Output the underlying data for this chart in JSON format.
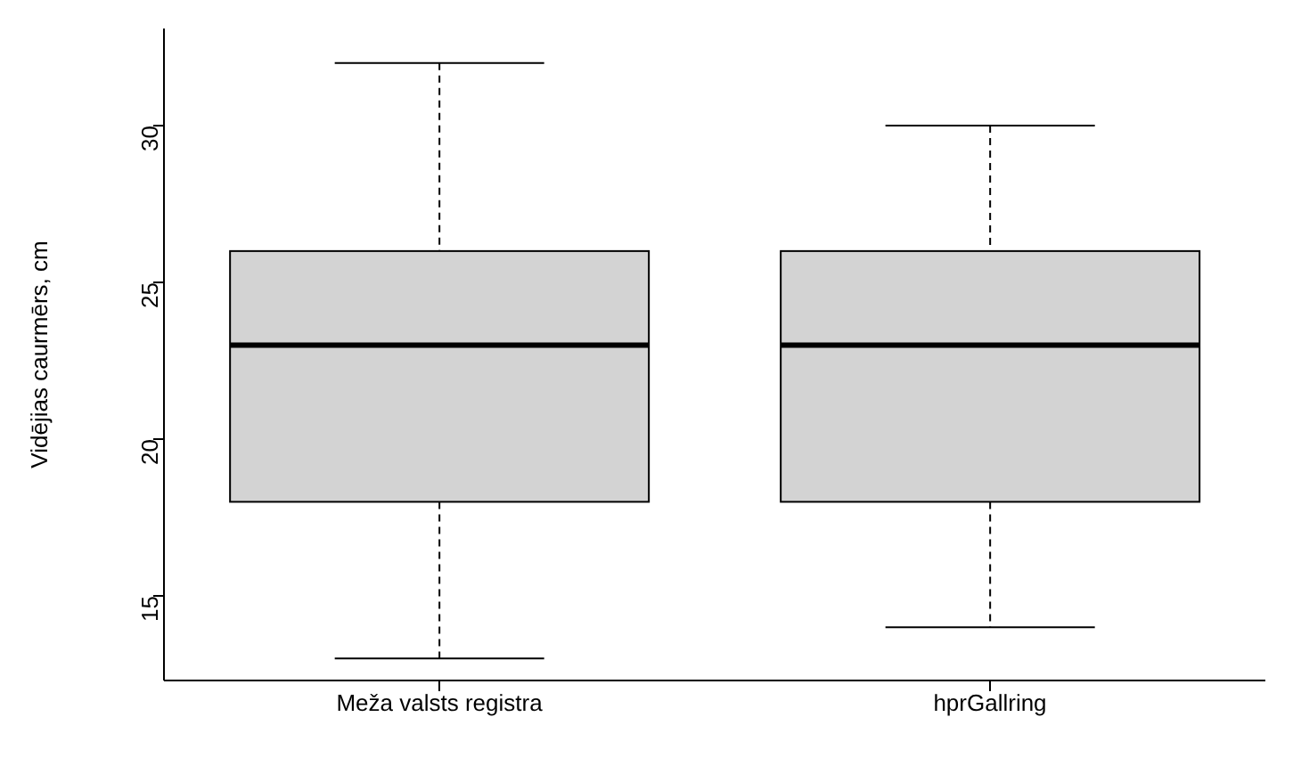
{
  "chart_data": {
    "type": "box",
    "ylabel": "Vidējias caurmērs, cm",
    "categories": [
      "Meža valsts registra",
      "hprGallring"
    ],
    "color": "#d3d3d3",
    "boxes": [
      {
        "low": 13,
        "q1": 18,
        "median": 23,
        "q3": 26,
        "high": 32
      },
      {
        "low": 14,
        "q1": 18,
        "median": 23,
        "q3": 26,
        "high": 30
      }
    ],
    "ylim": [
      12.3,
      33.1
    ],
    "yticks": [
      15,
      20,
      25,
      30
    ]
  }
}
